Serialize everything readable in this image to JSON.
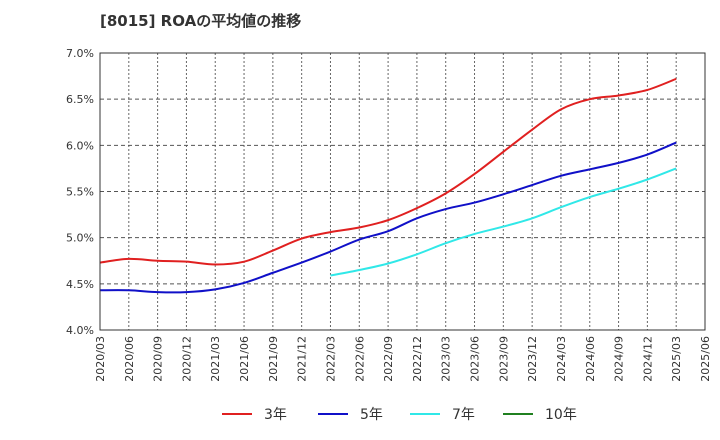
{
  "chart_data": {
    "type": "line",
    "title": "[8015]  ROAの平均値の推移",
    "xlabel": "",
    "ylabel": "",
    "ylim": [
      4.0,
      7.0
    ],
    "y_ticks": [
      "4.0%",
      "4.5%",
      "5.0%",
      "5.5%",
      "6.0%",
      "6.5%",
      "7.0%"
    ],
    "categories": [
      "2020/03",
      "2020/06",
      "2020/09",
      "2020/12",
      "2021/03",
      "2021/06",
      "2021/09",
      "2021/12",
      "2022/03",
      "2022/06",
      "2022/09",
      "2022/12",
      "2023/03",
      "2023/06",
      "2023/09",
      "2023/12",
      "2024/03",
      "2024/06",
      "2024/09",
      "2024/12",
      "2025/03",
      "2025/06"
    ],
    "grid": true,
    "legend_position": "bottom",
    "series": [
      {
        "name": "3年",
        "color": "#e02020",
        "values": [
          4.73,
          4.77,
          4.75,
          4.74,
          4.71,
          4.74,
          4.86,
          4.99,
          5.06,
          5.11,
          5.19,
          5.32,
          5.48,
          5.69,
          5.93,
          6.17,
          6.39,
          6.5,
          6.54,
          6.6,
          6.72,
          null
        ]
      },
      {
        "name": "5年",
        "color": "#1010c8",
        "values": [
          4.43,
          4.43,
          4.41,
          4.41,
          4.44,
          4.51,
          4.62,
          4.73,
          4.85,
          4.98,
          5.07,
          5.21,
          5.31,
          5.38,
          5.47,
          5.57,
          5.67,
          5.74,
          5.81,
          5.9,
          6.03,
          null
        ]
      },
      {
        "name": "7年",
        "color": "#30e8e8",
        "values": [
          null,
          null,
          null,
          null,
          null,
          null,
          null,
          null,
          4.59,
          4.65,
          4.72,
          4.82,
          4.94,
          5.04,
          5.12,
          5.21,
          5.33,
          5.44,
          5.53,
          5.63,
          5.75,
          null
        ]
      },
      {
        "name": "10年",
        "color": "#208020",
        "values": [
          null,
          null,
          null,
          null,
          null,
          null,
          null,
          null,
          null,
          null,
          null,
          null,
          null,
          null,
          null,
          null,
          null,
          null,
          null,
          null,
          null,
          null
        ]
      }
    ]
  }
}
